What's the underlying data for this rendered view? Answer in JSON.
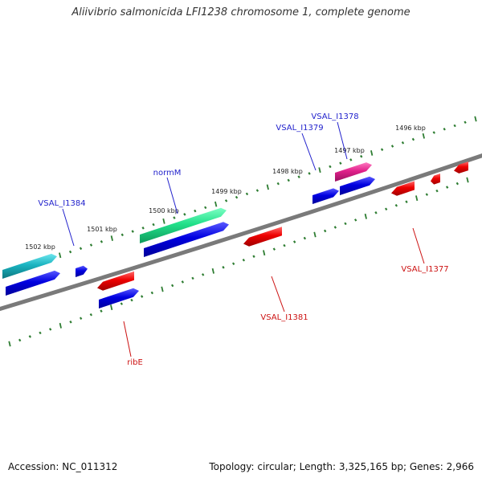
{
  "title": "Aliivibrio salmonicida LFI1238 chromosome 1, complete genome",
  "footer": {
    "accession": "Accession: NC_011312",
    "summary": "Topology: circular; Length: 3,325,165 bp; Genes: 2,966"
  },
  "colors": {
    "backbone": "#7a7a7a",
    "tick": "#2e7d32",
    "tick_label": "#222222",
    "forward_gene": "#0000e0",
    "reverse_gene": "#ee0000",
    "forward_label": "#2222cc",
    "reverse_label": "#cc1111",
    "normM": "#22e08a",
    "VSAL_I1384": "#1ab3c0",
    "VSAL_I1378": "#e0208a"
  },
  "tick_labels": [
    "1502 kbp",
    "1501 kbp",
    "1500 kbp",
    "1499 kbp",
    "1498 kbp",
    "1497 kbp",
    "1496 kbp"
  ],
  "gene_labels": {
    "forward": [
      "VSAL_I1384",
      "normM",
      "VSAL_I1379",
      "VSAL_I1378"
    ],
    "reverse": [
      "ribE",
      "VSAL_I1381",
      "VSAL_I1377"
    ]
  }
}
